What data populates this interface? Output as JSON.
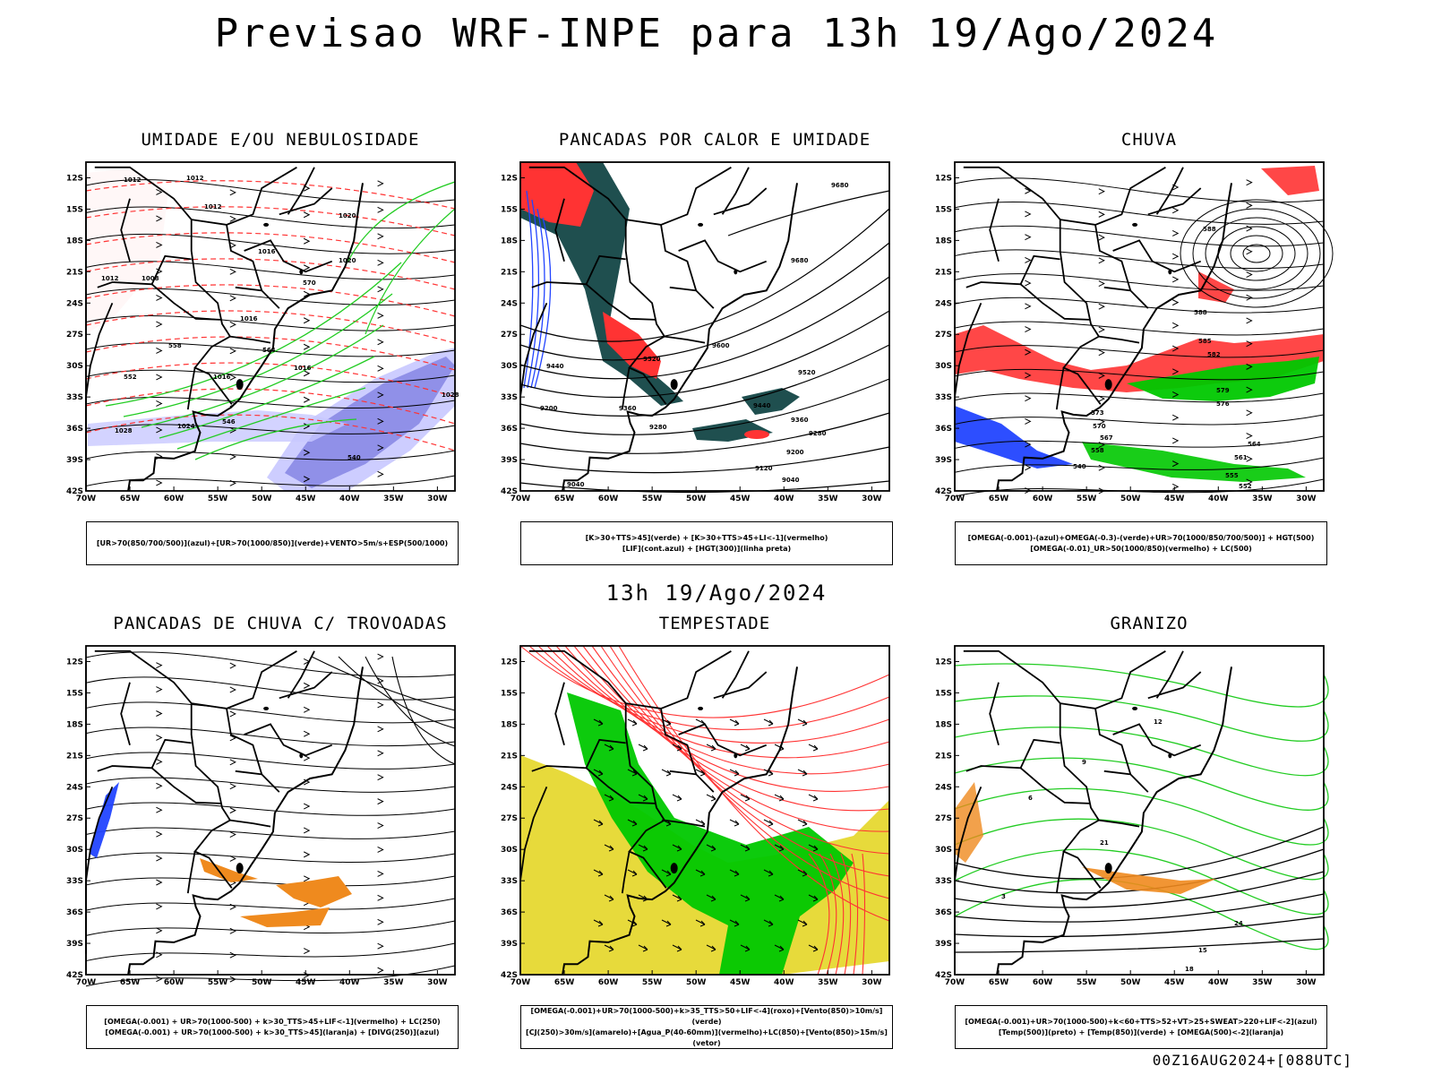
{
  "header": {
    "title": "Previsao WRF-INPE  para 13h 19/Ago/2024",
    "mid_date": "13h 19/Ago/2024",
    "run_stamp": "00Z16AUG2024+[088UTC]"
  },
  "axes": {
    "lat_labels": [
      "12S",
      "15S",
      "18S",
      "21S",
      "24S",
      "27S",
      "30S",
      "33S",
      "36S",
      "39S",
      "42S"
    ],
    "lon_labels": [
      "70W",
      "65W",
      "60W",
      "55W",
      "50W",
      "45W",
      "40W",
      "35W",
      "30W"
    ]
  },
  "colors": {
    "red": "#ff3333",
    "green": "#22cc22",
    "bright_green": "#00c800",
    "blue": "#2244ff",
    "purple": "#8a8ae6",
    "lavender": "#c8c8ff",
    "dark_teal": "#1f4f4f",
    "yellow": "#e6d830",
    "orange": "#ef8a1e"
  },
  "panels": [
    {
      "title": "UMIDADE E/OU NEBULOSIDADE",
      "legend_lines": [
        "[UR>70(850/700/500)](azul)+[UR>70(1000/850)](verde)+VENTO>5m/s+ESP(500/1000)"
      ],
      "contour_labels": [
        "1012",
        "1012",
        "1012",
        "1016",
        "1020",
        "1020",
        "1016",
        "1012",
        "1008",
        "1024",
        "1028",
        "1028",
        "1016",
        "1016",
        "570",
        "564",
        "558",
        "552",
        "546",
        "540"
      ]
    },
    {
      "title": "PANCADAS POR CALOR E UMIDADE",
      "legend_lines": [
        "[K>30+TTS>45](verde) + [K>30+TTS>45+LI<-1](vermelho)",
        "[LIF](cont.azul) + [HGT(300)](linha preta)"
      ],
      "contour_labels": [
        "9680",
        "9680",
        "9600",
        "9520",
        "9520",
        "9440",
        "9440",
        "9360",
        "9360",
        "9280",
        "9280",
        "9200",
        "9200",
        "9120",
        "9040",
        "9040"
      ]
    },
    {
      "title": "CHUVA",
      "legend_lines": [
        "[OMEGA(-0.001)-(azul)+OMEGA(-0.3)-(verde)+UR>70(1000/850/700/500)] + HGT(500)",
        "[OMEGA(-0.01)_UR>50(1000/850)(vermelho) + LC(500)"
      ],
      "contour_labels": [
        "588",
        "588",
        "585",
        "582",
        "579",
        "576",
        "573",
        "570",
        "567",
        "564",
        "561",
        "558",
        "555",
        "552",
        "540"
      ]
    },
    {
      "title": "PANCADAS DE CHUVA C/ TROVOADAS",
      "legend_lines": [
        "[OMEGA(-0.001) + UR>70(1000-500) + k>30_TTS>45+LIF<-1](vermelho) + LC(250)",
        "[OMEGA(-0.001) + UR>70(1000-500) + k>30_TTS>45](laranja) + [DIVG(250)](azul)"
      ],
      "contour_labels": []
    },
    {
      "title": "TEMPESTADE",
      "legend_lines": [
        "[OMEGA(-0.001)+UR>70(1000-500)+k>35_TTS>50+LIF<-4](roxo)+[Vento(850)>10m/s](verde)",
        "[CJ(250)>30m/s](amarelo)+[Agua_P(40-60mm)](vermelho)+LC(850)+[Vento(850)>15m/s](vetor)"
      ],
      "contour_labels": []
    },
    {
      "title": "GRANIZO",
      "legend_lines": [
        "[OMEGA(-0.001)+UR>70(1000-500)+k<60+TTS>52+VT>25+SWEAT>220+LIF<-2](azul)",
        "[Temp(500)](preto) + [Temp(850)](verde) + [OMEGA(500)<-2](laranja)"
      ],
      "contour_labels": [
        "15",
        "18",
        "21",
        "24",
        "3",
        "6",
        "9",
        "12"
      ]
    }
  ]
}
